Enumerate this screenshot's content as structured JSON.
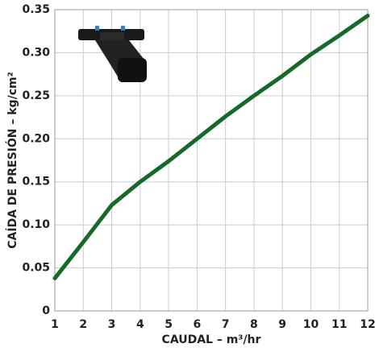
{
  "chart_data": {
    "type": "line",
    "x_label": "CAUDAL – m³/hr",
    "y_label": "CAÍDA DE PRESIÓN – kg/cm²",
    "x": [
      1,
      2,
      3,
      4,
      5,
      6,
      7,
      8,
      9,
      10,
      11,
      12
    ],
    "series": [
      {
        "color": "#17692a",
        "values": [
          0.038,
          0.08,
          0.123,
          0.15,
          0.174,
          0.2,
          0.226,
          0.25,
          0.273,
          0.298,
          0.32,
          0.343
        ]
      }
    ],
    "xlim": [
      1,
      12
    ],
    "xticks": [
      1,
      2,
      3,
      4,
      5,
      6,
      7,
      8,
      9,
      10,
      11,
      12
    ],
    "ylim": [
      0,
      0.35
    ],
    "yticks": [
      0,
      0.05,
      {
        "value": 0.1,
        "label": "0.10"
      },
      0.15,
      {
        "value": 0.2,
        "label": "0.20"
      },
      0.25,
      {
        "value": 0.3,
        "label": "0.30"
      },
      0.35
    ],
    "grid": true
  }
}
